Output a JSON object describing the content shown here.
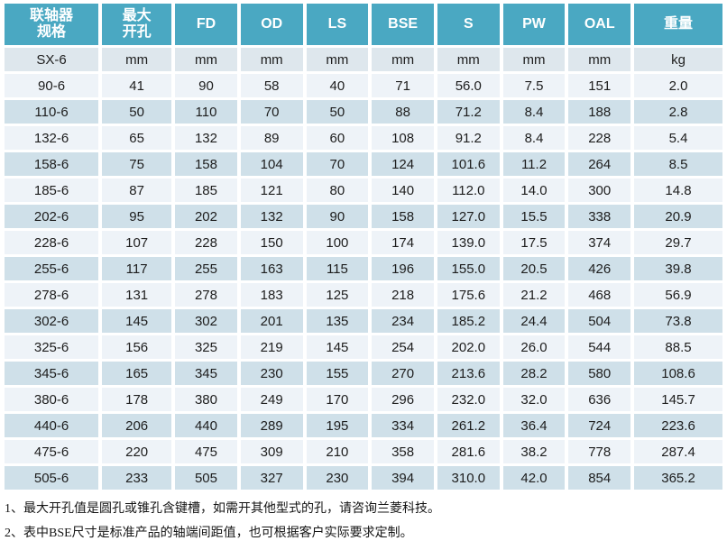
{
  "colors": {
    "header_bg": "#4aa8c2",
    "header_text": "#ffffff",
    "units_row_bg": "#dee7ed",
    "row_light_bg": "#eef3f8",
    "row_dark_bg": "#cfe0e9",
    "body_text": "#1d1d1d"
  },
  "table": {
    "headers": [
      "联轴器\n规格",
      "最大\n开孔",
      "FD",
      "OD",
      "LS",
      "BSE",
      "S",
      "PW",
      "OAL",
      "重量"
    ],
    "units_row": [
      "SX-6",
      "mm",
      "mm",
      "mm",
      "mm",
      "mm",
      "mm",
      "mm",
      "mm",
      "kg"
    ],
    "rows": [
      [
        "90-6",
        "41",
        "90",
        "58",
        "40",
        "71",
        "56.0",
        "7.5",
        "151",
        "2.0"
      ],
      [
        "110-6",
        "50",
        "110",
        "70",
        "50",
        "88",
        "71.2",
        "8.4",
        "188",
        "2.8"
      ],
      [
        "132-6",
        "65",
        "132",
        "89",
        "60",
        "108",
        "91.2",
        "8.4",
        "228",
        "5.4"
      ],
      [
        "158-6",
        "75",
        "158",
        "104",
        "70",
        "124",
        "101.6",
        "11.2",
        "264",
        "8.5"
      ],
      [
        "185-6",
        "87",
        "185",
        "121",
        "80",
        "140",
        "112.0",
        "14.0",
        "300",
        "14.8"
      ],
      [
        "202-6",
        "95",
        "202",
        "132",
        "90",
        "158",
        "127.0",
        "15.5",
        "338",
        "20.9"
      ],
      [
        "228-6",
        "107",
        "228",
        "150",
        "100",
        "174",
        "139.0",
        "17.5",
        "374",
        "29.7"
      ],
      [
        "255-6",
        "117",
        "255",
        "163",
        "115",
        "196",
        "155.0",
        "20.5",
        "426",
        "39.8"
      ],
      [
        "278-6",
        "131",
        "278",
        "183",
        "125",
        "218",
        "175.6",
        "21.2",
        "468",
        "56.9"
      ],
      [
        "302-6",
        "145",
        "302",
        "201",
        "135",
        "234",
        "185.2",
        "24.4",
        "504",
        "73.8"
      ],
      [
        "325-6",
        "156",
        "325",
        "219",
        "145",
        "254",
        "202.0",
        "26.0",
        "544",
        "88.5"
      ],
      [
        "345-6",
        "165",
        "345",
        "230",
        "155",
        "270",
        "213.6",
        "28.2",
        "580",
        "108.6"
      ],
      [
        "380-6",
        "178",
        "380",
        "249",
        "170",
        "296",
        "232.0",
        "32.0",
        "636",
        "145.7"
      ],
      [
        "440-6",
        "206",
        "440",
        "289",
        "195",
        "334",
        "261.2",
        "36.4",
        "724",
        "223.6"
      ],
      [
        "475-6",
        "220",
        "475",
        "309",
        "210",
        "358",
        "281.6",
        "38.2",
        "778",
        "287.4"
      ],
      [
        "505-6",
        "233",
        "505",
        "327",
        "230",
        "394",
        "310.0",
        "42.0",
        "854",
        "365.2"
      ]
    ]
  },
  "notes": [
    "1、最大开孔值是圆孔或锥孔含键槽，如需开其他型式的孔，请咨询兰菱科技。",
    "2、表中BSE尺寸是标准产品的轴端间距值，也可根据客户实际要求定制。"
  ]
}
